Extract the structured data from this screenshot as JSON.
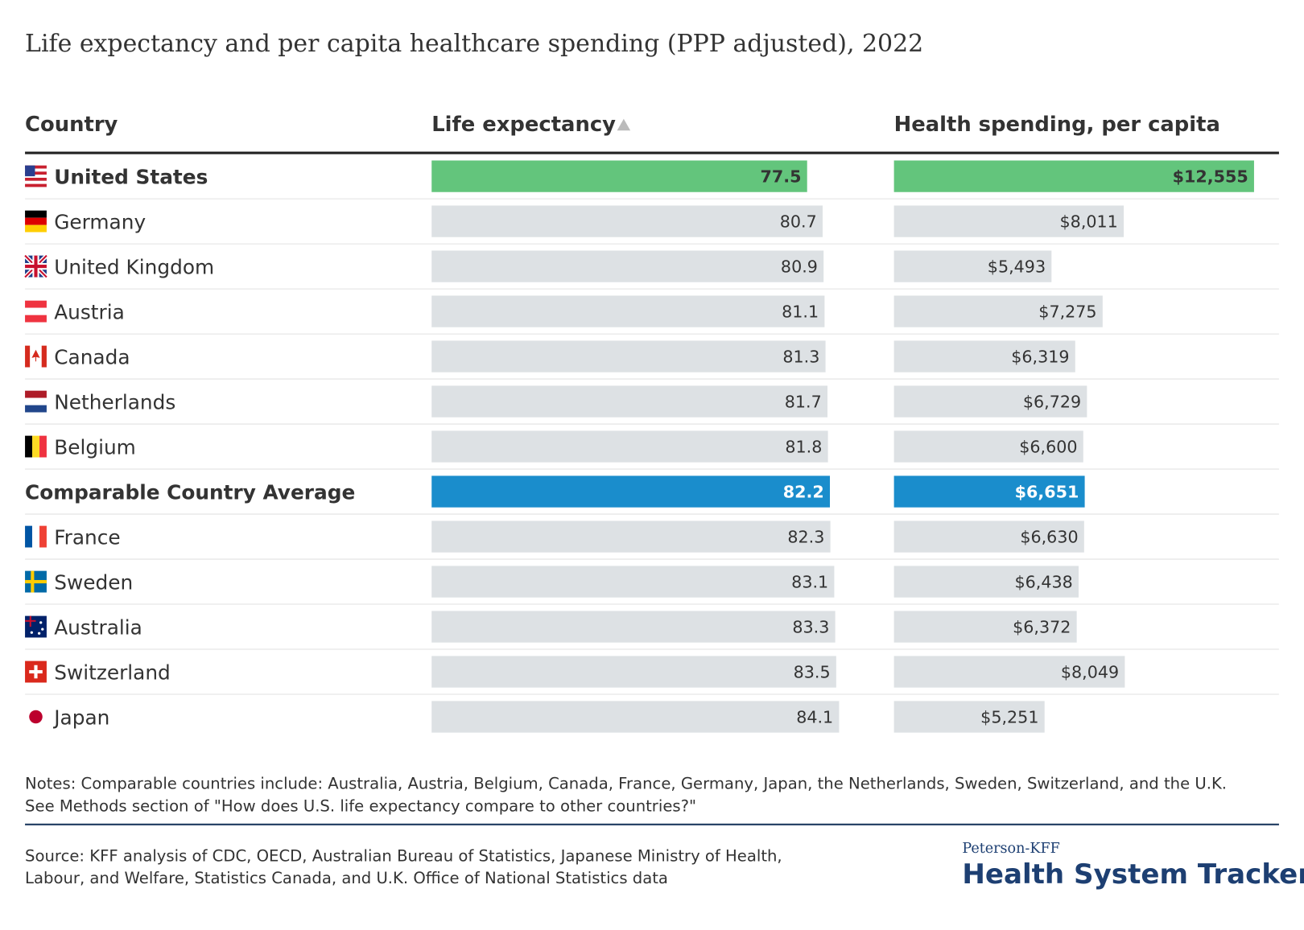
{
  "chart_data": {
    "type": "bar-table",
    "title": "Life expectancy and per capita healthcare spending (PPP adjusted), 2022",
    "category_header": "Country",
    "categories": [
      "United States",
      "Germany",
      "United Kingdom",
      "Austria",
      "Canada",
      "Netherlands",
      "Belgium",
      "Comparable Country Average",
      "France",
      "Sweden",
      "Australia",
      "Switzerland",
      "Japan"
    ],
    "color": "#dde1e4",
    "row_colors": [
      "#63c57c",
      "#dde1e4",
      "#dde1e4",
      "#dde1e4",
      "#dde1e4",
      "#dde1e4",
      "#dde1e4",
      "#1a8dcc",
      "#dde1e4",
      "#dde1e4",
      "#dde1e4",
      "#dde1e4",
      "#dde1e4"
    ],
    "label_colors": [
      "#333333",
      "#333333",
      "#333333",
      "#333333",
      "#333333",
      "#333333",
      "#333333",
      "#ffffff",
      "#333333",
      "#333333",
      "#333333",
      "#333333",
      "#333333"
    ],
    "series": [
      {
        "name": "Life expectancy",
        "values": [
          77.5,
          80.7,
          80.9,
          81.1,
          81.3,
          81.7,
          81.8,
          82.2,
          82.3,
          83.1,
          83.3,
          83.5,
          84.1
        ]
      },
      {
        "name": "Health spending, per capita",
        "values": [
          12555,
          8011,
          5493,
          7275,
          6319,
          6729,
          6600,
          6651,
          6630,
          6438,
          6372,
          8049,
          5251
        ],
        "value_labels": [
          "$12,555",
          "$8,011",
          "$5,493",
          "$7,275",
          "$6,319",
          "$6,729",
          "$6,600",
          "$6,651",
          "$6,630",
          "$6,438",
          "$6,372",
          "$8,049",
          "$5,251"
        ]
      }
    ],
    "notes": [
      "Notes: Comparable countries include: Australia, Austria, Belgium, Canada, France, Germany, Japan, the Netherlands, Sweden, Switzerland, and the U.K.",
      "See Methods section of \"How does U.S. life expectancy compare to other countries?\""
    ],
    "source": [
      "Source: KFF analysis of CDC, OECD, Australian Bureau of Statistics, Japanese Ministry of Health,",
      "Labour, and Welfare, Statistics Canada, and U.K. Office of National Statistics data"
    ],
    "brand": {
      "top": "Peterson-KFF",
      "name": "Health System Tracker"
    }
  }
}
